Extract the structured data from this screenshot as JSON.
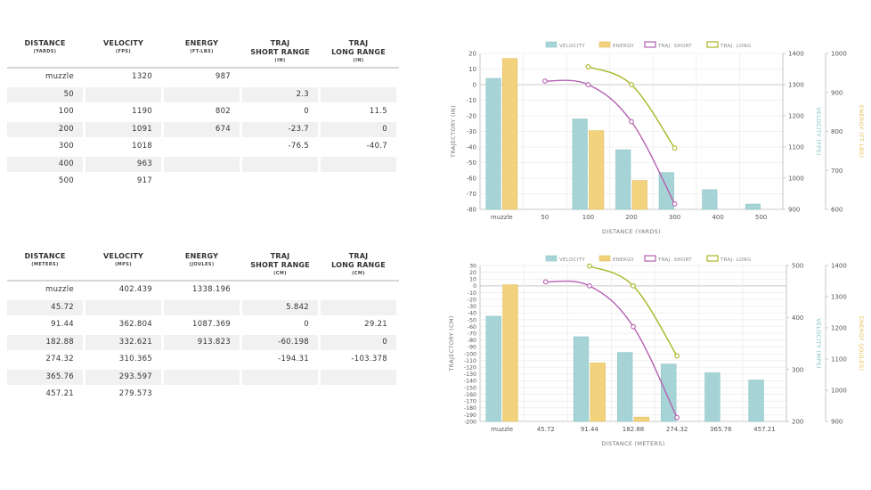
{
  "tables": [
    {
      "columns": [
        {
          "label": "DISTANCE",
          "unit": "(YARDS)"
        },
        {
          "label": "VELOCITY",
          "unit": "(FPS)"
        },
        {
          "label": "ENERGY",
          "unit": "(FT-LBS)"
        },
        {
          "label": "TRAJ\nSHORT RANGE",
          "unit": "(IN)"
        },
        {
          "label": "TRAJ\nLONG RANGE",
          "unit": "(IN)"
        }
      ],
      "rows": [
        [
          "muzzle",
          "1320",
          "987",
          "",
          ""
        ],
        [
          "50",
          "",
          "",
          "2.3",
          ""
        ],
        [
          "100",
          "1190",
          "802",
          "0",
          "11.5"
        ],
        [
          "200",
          "1091",
          "674",
          "-23.7",
          "0"
        ],
        [
          "300",
          "1018",
          "",
          "-76.5",
          "-40.7"
        ],
        [
          "400",
          "963",
          "",
          "",
          ""
        ],
        [
          "500",
          "917",
          "",
          "",
          ""
        ]
      ]
    },
    {
      "columns": [
        {
          "label": "DISTANCE",
          "unit": "(METERS)"
        },
        {
          "label": "VELOCITY",
          "unit": "(MPS)"
        },
        {
          "label": "ENERGY",
          "unit": "(JOULES)"
        },
        {
          "label": "TRAJ\nSHORT RANGE",
          "unit": "(CM)"
        },
        {
          "label": "TRAJ\nLONG RANGE",
          "unit": "(CM)"
        }
      ],
      "rows": [
        [
          "muzzle",
          "402.439",
          "1338.196",
          "",
          ""
        ],
        [
          "45.72",
          "",
          "",
          "5.842",
          ""
        ],
        [
          "91.44",
          "362.804",
          "1087.369",
          "0",
          "29.21"
        ],
        [
          "182.88",
          "332.621",
          "913.823",
          "-60.198",
          "0"
        ],
        [
          "274.32",
          "310.365",
          "",
          "-194.31",
          "-103.378"
        ],
        [
          "365.76",
          "293.597",
          "",
          "",
          ""
        ],
        [
          "457.21",
          "279.573",
          "",
          "",
          ""
        ]
      ]
    }
  ],
  "chart_data": [
    {
      "type": "bar",
      "legend": [
        "VELOCITY",
        "ENERGY",
        "TRAJ. SHORT",
        "TRAJ. LONG"
      ],
      "colors": {
        "velocity": "#a6d4d6",
        "energy": "#f2d27c",
        "short": "#b560b0",
        "long": "#a8b625"
      },
      "categories": [
        "muzzle",
        "50",
        "100",
        "200",
        "300",
        "400",
        "500"
      ],
      "xlabel": "DISTANCE (YARDS)",
      "ylabel_left": "TRAJECTORY (IN)",
      "ylabel_mid": "VELOCITY (FPS)",
      "ylabel_right": "ENERGY (FT-LBS)",
      "y_left": {
        "min": -80,
        "max": 20,
        "ticks": [
          "20",
          "10",
          "0",
          "-10",
          "-20",
          "-30",
          "-40",
          "-50",
          "-60",
          "-70",
          "-80"
        ],
        "step": 10
      },
      "y_mid": {
        "min": 900,
        "max": 1400,
        "ticks": [
          "1400",
          "1300",
          "1200",
          "1100",
          "1000",
          "900"
        ]
      },
      "y_right": {
        "min": 600,
        "max": 1000,
        "ticks": [
          "1000",
          "900",
          "800",
          "700",
          "600"
        ]
      },
      "velocity": [
        1320,
        null,
        1190,
        1091,
        1018,
        963,
        917
      ],
      "energy": [
        987,
        null,
        802,
        674,
        null,
        null,
        null
      ],
      "traj_short": [
        null,
        2.3,
        0,
        -23.7,
        -76.5,
        null,
        null
      ],
      "traj_long": [
        null,
        null,
        11.5,
        0,
        -40.7,
        null,
        null
      ]
    },
    {
      "type": "bar",
      "legend": [
        "VELOCITY",
        "ENERGY",
        "TRAJ. SHORT",
        "TRAJ. LONG"
      ],
      "colors": {
        "velocity": "#a6d4d6",
        "energy": "#f2d27c",
        "short": "#b560b0",
        "long": "#a8b625"
      },
      "categories": [
        "muzzle",
        "45.72",
        "91.44",
        "182.88",
        "274.32",
        "365.76",
        "457.21"
      ],
      "xlabel": "DISTANCE (METERS)",
      "ylabel_left": "TRAJECTORY (CM)",
      "ylabel_mid": "VELOCITY (MPS)",
      "ylabel_right": "ENERGY (JOULES)",
      "y_left": {
        "min": -200,
        "max": 30,
        "ticks": [
          "30",
          "20",
          "10",
          "0",
          "-10",
          "-20",
          "-30",
          "-40",
          "-50",
          "-60",
          "-70",
          "-80",
          "-90",
          "-100",
          "-110",
          "-120",
          "-130",
          "-140",
          "-150",
          "-160",
          "-170",
          "-180",
          "-190",
          "-200"
        ],
        "step": 10
      },
      "y_mid": {
        "min": 200,
        "max": 500,
        "ticks": [
          "500",
          "400",
          "300",
          "200"
        ]
      },
      "y_right": {
        "min": 900,
        "max": 1400,
        "ticks": [
          "1400",
          "1300",
          "1200",
          "1100",
          "1000",
          "900"
        ]
      },
      "velocity": [
        402.439,
        null,
        362.804,
        332.621,
        310.365,
        293.597,
        279.573
      ],
      "energy": [
        1338.196,
        null,
        1087.369,
        913.823,
        null,
        null,
        null
      ],
      "traj_short": [
        null,
        5.842,
        0,
        -60.198,
        -194.31,
        null,
        null
      ],
      "traj_long": [
        null,
        null,
        29.21,
        0,
        -103.378,
        null,
        null
      ]
    }
  ]
}
